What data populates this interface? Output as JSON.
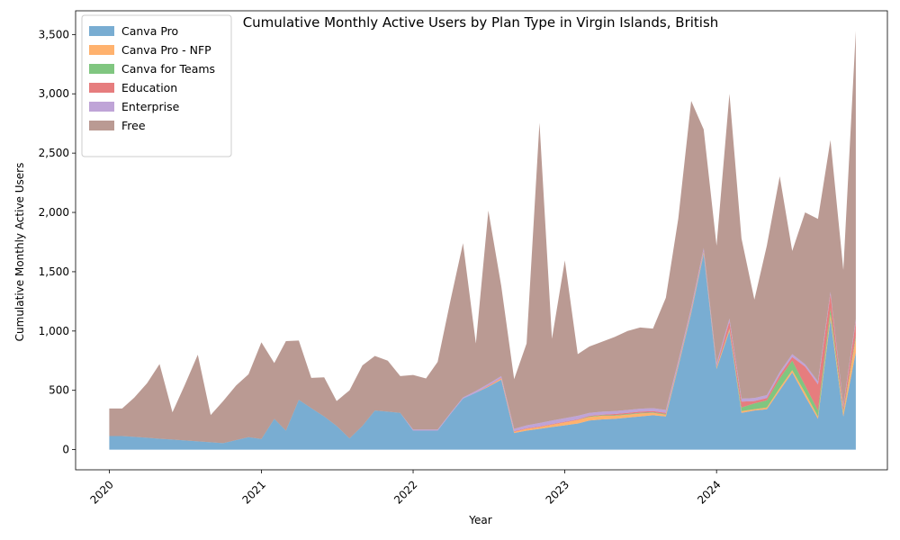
{
  "chart_data": {
    "type": "area",
    "stacked": true,
    "title": "Cumulative Monthly Active Users by Plan Type in Virgin Islands, British",
    "xlabel": "Year",
    "ylabel": "Cumulative Monthly Active Users",
    "xlim": [
      "2019-10-12",
      "2025-02-15"
    ],
    "ylim": [
      -170,
      3700
    ],
    "yticks": [
      0,
      500,
      1000,
      1500,
      2000,
      2500,
      3000,
      3500
    ],
    "ytick_labels": [
      "0",
      "500",
      "1,000",
      "1,500",
      "2,000",
      "2,500",
      "3,000",
      "3,500"
    ],
    "xticks": [
      "2020-01-01",
      "2021-01-01",
      "2022-01-01",
      "2023-01-01",
      "2024-01-01"
    ],
    "xtick_labels": [
      "2020",
      "2021",
      "2022",
      "2023",
      "2024"
    ],
    "legend_position": "top-left",
    "grid": false,
    "x": [
      "2020-01-01",
      "2020-02-01",
      "2020-03-01",
      "2020-04-01",
      "2020-05-01",
      "2020-06-01",
      "2020-07-01",
      "2020-08-01",
      "2020-09-01",
      "2020-10-01",
      "2020-11-01",
      "2020-12-01",
      "2021-01-01",
      "2021-02-01",
      "2021-03-01",
      "2021-04-01",
      "2021-05-01",
      "2021-06-01",
      "2021-07-01",
      "2021-08-01",
      "2021-09-01",
      "2021-10-01",
      "2021-11-01",
      "2021-12-01",
      "2022-01-01",
      "2022-02-01",
      "2022-03-01",
      "2022-04-01",
      "2022-05-01",
      "2022-06-01",
      "2022-07-01",
      "2022-08-01",
      "2022-09-01",
      "2022-10-01",
      "2022-11-01",
      "2022-12-01",
      "2023-01-01",
      "2023-02-01",
      "2023-03-01",
      "2023-04-01",
      "2023-05-01",
      "2023-06-01",
      "2023-07-01",
      "2023-08-01",
      "2023-09-01",
      "2023-10-01",
      "2023-11-01",
      "2023-12-01",
      "2024-01-01",
      "2024-02-01",
      "2024-03-01",
      "2024-04-01",
      "2024-05-01",
      "2024-06-01",
      "2024-07-01",
      "2024-08-01",
      "2024-09-01",
      "2024-10-01",
      "2024-11-01",
      "2024-12-01"
    ],
    "series": [
      {
        "name": "Canva Pro",
        "color": "#1f77b4",
        "values": [
          115,
          115,
          108,
          100,
          92,
          85,
          78,
          70,
          62,
          55,
          80,
          105,
          90,
          260,
          160,
          420,
          350,
          280,
          200,
          95,
          200,
          330,
          320,
          310,
          160,
          160,
          160,
          300,
          430,
          480,
          530,
          590,
          140,
          160,
          175,
          190,
          205,
          220,
          245,
          255,
          260,
          270,
          280,
          290,
          280,
          700,
          1150,
          1650,
          680,
          1000,
          310,
          330,
          340,
          500,
          650,
          450,
          260,
          1100,
          280,
          820
        ]
      },
      {
        "name": "Canva Pro - NFP",
        "color": "#ff7f0e",
        "values": [
          0,
          0,
          0,
          0,
          0,
          0,
          0,
          0,
          0,
          0,
          0,
          0,
          0,
          0,
          0,
          0,
          0,
          0,
          0,
          0,
          0,
          0,
          0,
          0,
          0,
          0,
          0,
          0,
          0,
          0,
          5,
          10,
          10,
          15,
          15,
          20,
          25,
          30,
          30,
          30,
          25,
          25,
          25,
          20,
          15,
          10,
          10,
          10,
          10,
          15,
          15,
          10,
          15,
          20,
          20,
          30,
          20,
          40,
          30,
          120
        ]
      },
      {
        "name": "Canva for Teams",
        "color": "#2ca02c",
        "values": [
          0,
          0,
          0,
          0,
          0,
          0,
          0,
          0,
          0,
          0,
          0,
          0,
          0,
          0,
          0,
          0,
          0,
          0,
          0,
          0,
          0,
          0,
          0,
          0,
          0,
          0,
          0,
          0,
          0,
          0,
          0,
          0,
          0,
          0,
          0,
          0,
          0,
          0,
          5,
          5,
          5,
          5,
          5,
          5,
          5,
          5,
          5,
          5,
          5,
          5,
          30,
          50,
          60,
          80,
          80,
          60,
          50,
          50,
          15,
          20
        ]
      },
      {
        "name": "Education",
        "color": "#d62728",
        "values": [
          0,
          0,
          0,
          0,
          0,
          0,
          0,
          0,
          0,
          0,
          0,
          0,
          0,
          0,
          0,
          0,
          0,
          0,
          0,
          0,
          0,
          0,
          0,
          0,
          0,
          0,
          0,
          0,
          0,
          0,
          5,
          5,
          5,
          5,
          5,
          5,
          5,
          5,
          5,
          5,
          10,
          10,
          10,
          10,
          10,
          10,
          10,
          10,
          10,
          60,
          50,
          20,
          20,
          30,
          30,
          160,
          220,
          120,
          30,
          120
        ]
      },
      {
        "name": "Enterprise",
        "color": "#9467bd",
        "values": [
          0,
          0,
          0,
          0,
          0,
          0,
          0,
          0,
          0,
          0,
          0,
          0,
          0,
          0,
          0,
          0,
          0,
          0,
          0,
          0,
          0,
          0,
          0,
          0,
          10,
          10,
          10,
          10,
          10,
          15,
          15,
          15,
          20,
          25,
          30,
          30,
          30,
          30,
          25,
          25,
          25,
          25,
          25,
          25,
          25,
          25,
          25,
          25,
          25,
          25,
          25,
          25,
          25,
          25,
          25,
          20,
          25,
          20,
          20,
          20
        ]
      },
      {
        "name": "Free",
        "color": "#8c564b",
        "values": [
          232,
          232,
          330,
          460,
          630,
          230,
          470,
          730,
          230,
          355,
          460,
          530,
          815,
          470,
          755,
          500,
          255,
          330,
          210,
          405,
          510,
          460,
          430,
          310,
          460,
          430,
          570,
          950,
          1300,
          400,
          1460,
          760,
          420,
          690,
          2530,
          690,
          1330,
          520,
          560,
          590,
          625,
          665,
          685,
          670,
          945,
          1200,
          1740,
          1000,
          990,
          1895,
          1350,
          830,
          1260,
          1650,
          870,
          1280,
          1370,
          1280,
          1140,
          2430
        ]
      }
    ]
  }
}
